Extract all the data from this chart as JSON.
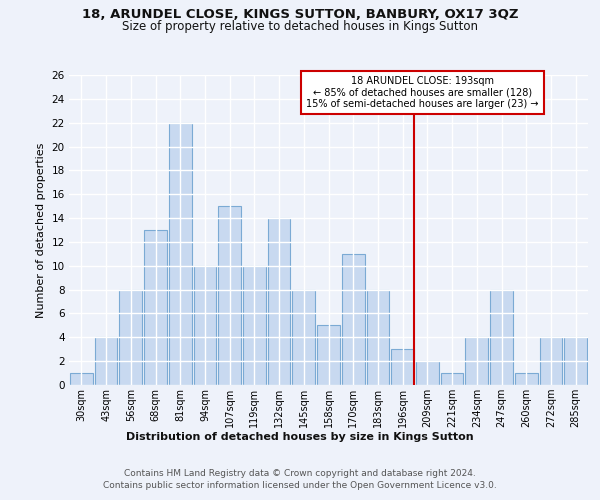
{
  "title": "18, ARUNDEL CLOSE, KINGS SUTTON, BANBURY, OX17 3QZ",
  "subtitle": "Size of property relative to detached houses in Kings Sutton",
  "xlabel": "Distribution of detached houses by size in Kings Sutton",
  "ylabel": "Number of detached properties",
  "categories": [
    "30sqm",
    "43sqm",
    "56sqm",
    "68sqm",
    "81sqm",
    "94sqm",
    "107sqm",
    "119sqm",
    "132sqm",
    "145sqm",
    "158sqm",
    "170sqm",
    "183sqm",
    "196sqm",
    "209sqm",
    "221sqm",
    "234sqm",
    "247sqm",
    "260sqm",
    "272sqm",
    "285sqm"
  ],
  "values": [
    1,
    4,
    8,
    13,
    22,
    10,
    15,
    10,
    14,
    8,
    5,
    11,
    8,
    3,
    2,
    1,
    4,
    8,
    1,
    4,
    4
  ],
  "bar_color": "#c8d9f0",
  "bar_edge_color": "#7baad4",
  "background_color": "#eef2fa",
  "grid_color": "#ffffff",
  "red_line_index": 13,
  "annotation_title": "18 ARUNDEL CLOSE: 193sqm",
  "annotation_line1": "← 85% of detached houses are smaller (128)",
  "annotation_line2": "15% of semi-detached houses are larger (23) →",
  "footer_line1": "Contains HM Land Registry data © Crown copyright and database right 2024.",
  "footer_line2": "Contains public sector information licensed under the Open Government Licence v3.0.",
  "ylim": [
    0,
    26
  ],
  "yticks": [
    0,
    2,
    4,
    6,
    8,
    10,
    12,
    14,
    16,
    18,
    20,
    22,
    24,
    26
  ]
}
